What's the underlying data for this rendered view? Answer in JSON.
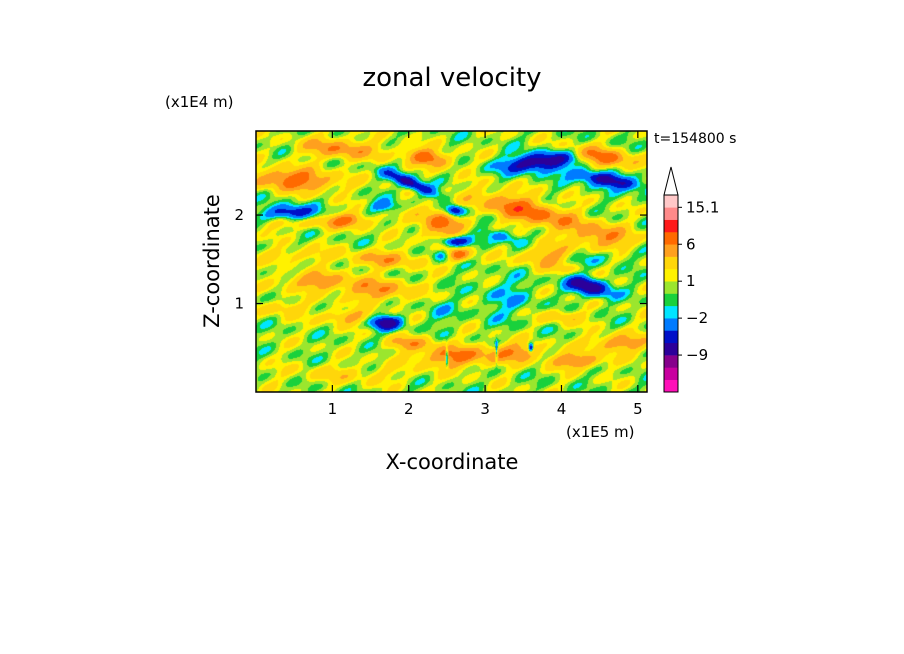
{
  "chart_data": {
    "type": "heatmap",
    "title": "zonal velocity",
    "xlabel": "X-coordinate",
    "ylabel": "Z-coordinate",
    "x_unit": "(x1E5 m)",
    "y_unit": "(x1E4 m)",
    "time_label": "t=154800 s",
    "xlim": [
      0,
      5.12
    ],
    "ylim": [
      0,
      2.95
    ],
    "x_ticks": [
      1,
      2,
      3,
      4,
      5
    ],
    "x_tick_labels": [
      "1",
      "2",
      "3",
      "4",
      "5"
    ],
    "y_ticks": [
      1,
      2
    ],
    "y_tick_labels": [
      "1",
      "2"
    ],
    "colorbar": {
      "levels": [
        -15,
        -12,
        -9,
        -6,
        -4,
        -2,
        -1,
        0,
        1,
        2,
        4,
        6,
        9,
        12,
        15.1
      ],
      "colors": [
        "#ff10b8",
        "#c8009f",
        "#86008c",
        "#2c009a",
        "#0010c8",
        "#007bff",
        "#00e5ff",
        "#19d13c",
        "#9be62e",
        "#fff200",
        "#ffd60a",
        "#ffa01e",
        "#ff6a00",
        "#ff1a1a",
        "#ff8a8a",
        "#ffc8c8"
      ],
      "labels": [
        {
          "value": 15.1,
          "text": "15.1"
        },
        {
          "value": 6,
          "text": "6"
        },
        {
          "value": 1,
          "text": "1"
        },
        {
          "value": -2,
          "text": "−2"
        },
        {
          "value": -9,
          "text": "−9"
        }
      ],
      "extend": "max"
    },
    "features": [
      {
        "x": 0.5,
        "z": 2.4,
        "sx": 0.55,
        "sz": 0.12,
        "tilt": -0.05,
        "value": 7
      },
      {
        "x": 0.45,
        "z": 2.03,
        "sx": 0.32,
        "sz": 0.08,
        "tilt": 0.0,
        "value": -7
      },
      {
        "x": 1.1,
        "z": 2.75,
        "sx": 0.5,
        "sz": 0.12,
        "tilt": -0.05,
        "value": 5
      },
      {
        "x": 1.7,
        "z": 2.1,
        "sx": 0.2,
        "sz": 0.07,
        "tilt": 0.0,
        "value": -4
      },
      {
        "x": 2.05,
        "z": 2.35,
        "sx": 0.35,
        "sz": 0.07,
        "tilt": -0.35,
        "value": -8
      },
      {
        "x": 2.25,
        "z": 2.65,
        "sx": 0.3,
        "sz": 0.09,
        "tilt": -0.15,
        "value": 7
      },
      {
        "x": 2.6,
        "z": 2.05,
        "sx": 0.12,
        "sz": 0.06,
        "tilt": 0.0,
        "value": -8
      },
      {
        "x": 2.4,
        "z": 1.9,
        "sx": 0.3,
        "sz": 0.18,
        "tilt": -0.2,
        "value": 6
      },
      {
        "x": 2.6,
        "z": 1.7,
        "sx": 0.2,
        "sz": 0.06,
        "tilt": 0.0,
        "value": -8
      },
      {
        "x": 2.6,
        "z": 1.55,
        "sx": 0.2,
        "sz": 0.07,
        "tilt": 0.0,
        "value": 8
      },
      {
        "x": 2.45,
        "z": 1.55,
        "sx": 0.15,
        "sz": 0.07,
        "tilt": 0.0,
        "value": -7
      },
      {
        "x": 3.7,
        "z": 2.6,
        "sx": 0.45,
        "sz": 0.1,
        "tilt": 0.1,
        "value": -9
      },
      {
        "x": 3.55,
        "z": 2.05,
        "sx": 0.65,
        "sz": 0.15,
        "tilt": -0.2,
        "value": 7
      },
      {
        "x": 3.25,
        "z": 1.75,
        "sx": 0.3,
        "sz": 0.07,
        "tilt": -0.2,
        "value": -4
      },
      {
        "x": 3.9,
        "z": 1.5,
        "sx": 0.4,
        "sz": 0.14,
        "tilt": -0.1,
        "value": 5
      },
      {
        "x": 4.35,
        "z": 1.2,
        "sx": 0.28,
        "sz": 0.1,
        "tilt": -0.2,
        "value": -9
      },
      {
        "x": 3.3,
        "z": 1.05,
        "sx": 0.4,
        "sz": 0.25,
        "tilt": 0.0,
        "value": -2
      },
      {
        "x": 4.6,
        "z": 2.4,
        "sx": 0.5,
        "sz": 0.08,
        "tilt": -0.15,
        "value": -8
      },
      {
        "x": 4.55,
        "z": 2.65,
        "sx": 0.4,
        "sz": 0.1,
        "tilt": -0.15,
        "value": 7
      },
      {
        "x": 4.55,
        "z": 1.75,
        "sx": 0.4,
        "sz": 0.14,
        "tilt": -0.1,
        "value": 5
      },
      {
        "x": 4.3,
        "z": 1.5,
        "sx": 0.5,
        "sz": 0.09,
        "tilt": 0.1,
        "value": -3
      },
      {
        "x": 0.8,
        "z": 1.25,
        "sx": 0.45,
        "sz": 0.1,
        "tilt": 0.0,
        "value": 5
      },
      {
        "x": 1.6,
        "z": 1.15,
        "sx": 0.45,
        "sz": 0.12,
        "tilt": 0.0,
        "value": 5
      },
      {
        "x": 1.7,
        "z": 1.5,
        "sx": 0.5,
        "sz": 0.1,
        "tilt": 0.0,
        "value": 4
      },
      {
        "x": 1.7,
        "z": 0.78,
        "sx": 0.2,
        "sz": 0.08,
        "tilt": 0.0,
        "value": -8
      },
      {
        "x": 1.2,
        "z": 0.85,
        "sx": 0.35,
        "sz": 0.08,
        "tilt": 0.0,
        "value": 4
      },
      {
        "x": 0.35,
        "z": 0.95,
        "sx": 0.3,
        "sz": 0.08,
        "tilt": 0.0,
        "value": 3
      },
      {
        "x": 2.4,
        "z": 0.9,
        "sx": 0.25,
        "sz": 0.12,
        "tilt": 0.0,
        "value": -1.5
      },
      {
        "x": 2.0,
        "z": 0.55,
        "sx": 0.3,
        "sz": 0.08,
        "tilt": 0.0,
        "value": 4
      },
      {
        "x": 2.6,
        "z": 0.4,
        "sx": 0.5,
        "sz": 0.12,
        "tilt": 0.0,
        "value": 6
      },
      {
        "x": 3.4,
        "z": 0.45,
        "sx": 0.35,
        "sz": 0.1,
        "tilt": 0.0,
        "value": 5
      },
      {
        "x": 4.2,
        "z": 0.35,
        "sx": 0.35,
        "sz": 0.08,
        "tilt": 0.0,
        "value": 6
      },
      {
        "x": 4.75,
        "z": 0.55,
        "sx": 0.4,
        "sz": 0.1,
        "tilt": 0.0,
        "value": 5
      },
      {
        "x": 4.0,
        "z": 0.85,
        "sx": 0.3,
        "sz": 0.08,
        "tilt": 0.0,
        "value": 3
      },
      {
        "x": 0.6,
        "z": 1.9,
        "sx": 0.8,
        "sz": 0.07,
        "tilt": 0.0,
        "value": 2
      },
      {
        "x": 0.55,
        "z": 1.55,
        "sx": 0.5,
        "sz": 0.08,
        "tilt": 0.0,
        "value": 2.5
      },
      {
        "x": 1.2,
        "z": 0.2,
        "sx": 0.8,
        "sz": 0.1,
        "tilt": 0.0,
        "value": 2
      },
      {
        "x": 2.5,
        "z": 0.4,
        "sx": 0.015,
        "sz": 0.12,
        "tilt": 0.0,
        "value": -8
      },
      {
        "x": 3.15,
        "z": 0.45,
        "sx": 0.015,
        "sz": 0.12,
        "tilt": 0.0,
        "value": -6
      },
      {
        "x": 3.6,
        "z": 0.5,
        "sx": 0.03,
        "sz": 0.05,
        "tilt": 0.0,
        "value": -8
      },
      {
        "x": 3.9,
        "z": 2.1,
        "sx": 0.12,
        "sz": 0.08,
        "tilt": 0.0,
        "value": -1.5
      },
      {
        "x": 1.2,
        "z": 1.95,
        "sx": 0.3,
        "sz": 0.08,
        "tilt": 0.0,
        "value": 5
      }
    ]
  }
}
